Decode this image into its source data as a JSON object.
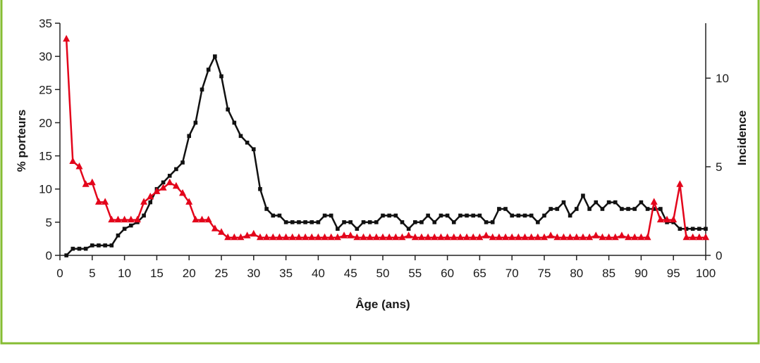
{
  "colors": {
    "frame": "#86bd33",
    "series_left": "#111111",
    "series_right": "#e3051b",
    "axis": "#222222"
  },
  "chart_data": {
    "type": "line",
    "xlabel": "Âge (ans)",
    "ylabel": "% porteurs",
    "y2label": "Incidence",
    "xlim": [
      0,
      100
    ],
    "ylim": [
      0,
      35
    ],
    "y2lim": [
      0,
      13.1
    ],
    "xticks": [
      0,
      5,
      10,
      15,
      20,
      25,
      30,
      35,
      40,
      45,
      50,
      55,
      60,
      65,
      70,
      75,
      80,
      85,
      90,
      95,
      100
    ],
    "yticks": [
      0,
      5,
      10,
      15,
      20,
      25,
      30,
      35
    ],
    "y2ticks": [
      0,
      5,
      10
    ],
    "grid": false,
    "legend": "none",
    "x": [
      1,
      2,
      3,
      4,
      5,
      6,
      7,
      8,
      9,
      10,
      11,
      12,
      13,
      14,
      15,
      16,
      17,
      18,
      19,
      20,
      21,
      22,
      23,
      24,
      25,
      26,
      27,
      28,
      29,
      30,
      31,
      32,
      33,
      34,
      35,
      36,
      37,
      38,
      39,
      40,
      41,
      42,
      43,
      44,
      45,
      46,
      47,
      48,
      49,
      50,
      51,
      52,
      53,
      54,
      55,
      56,
      57,
      58,
      59,
      60,
      61,
      62,
      63,
      64,
      65,
      66,
      67,
      68,
      69,
      70,
      71,
      72,
      73,
      74,
      75,
      76,
      77,
      78,
      79,
      80,
      81,
      82,
      83,
      84,
      85,
      86,
      87,
      88,
      89,
      90,
      91,
      92,
      93,
      94,
      95,
      96,
      97,
      98,
      99,
      100
    ],
    "series": [
      {
        "axis": "left",
        "marker": "square",
        "values": [
          0,
          1,
          1,
          1,
          1.5,
          1.5,
          1.5,
          1.5,
          3,
          4,
          4.5,
          5,
          6,
          8,
          10,
          11,
          12,
          13,
          14,
          18,
          20,
          25,
          28,
          30,
          27,
          22,
          20,
          18,
          17,
          16,
          10,
          7,
          6,
          6,
          5,
          5,
          5,
          5,
          5,
          5,
          6,
          6,
          4,
          5,
          5,
          4,
          5,
          5,
          5,
          6,
          6,
          6,
          5,
          4,
          5,
          5,
          6,
          5,
          6,
          6,
          5,
          6,
          6,
          6,
          6,
          5,
          5,
          7,
          7,
          6,
          6,
          6,
          6,
          5,
          6,
          7,
          7,
          8,
          6,
          7,
          9,
          7,
          8,
          7,
          8,
          8,
          7,
          7,
          7,
          8,
          7,
          7,
          7,
          5,
          5,
          4,
          4,
          4,
          4,
          4
        ]
      },
      {
        "axis": "right",
        "marker": "triangle",
        "values": [
          12.2,
          5.3,
          5,
          4,
          4.1,
          3,
          3,
          2,
          2,
          2,
          2,
          2,
          3,
          3.3,
          3.6,
          3.8,
          4.1,
          3.9,
          3.5,
          3,
          2,
          2,
          2,
          1.5,
          1.3,
          1,
          1,
          1,
          1.1,
          1.2,
          1,
          1,
          1,
          1,
          1,
          1,
          1,
          1,
          1,
          1,
          1,
          1,
          1,
          1.1,
          1.1,
          1,
          1,
          1,
          1,
          1,
          1,
          1,
          1,
          1.1,
          1,
          1,
          1,
          1,
          1,
          1,
          1,
          1,
          1,
          1,
          1,
          1.1,
          1,
          1,
          1,
          1,
          1,
          1,
          1,
          1,
          1,
          1.1,
          1,
          1,
          1,
          1,
          1,
          1,
          1.1,
          1,
          1,
          1,
          1.1,
          1,
          1,
          1,
          1,
          3,
          2,
          2,
          2,
          4,
          1,
          1,
          1,
          1
        ]
      }
    ]
  }
}
